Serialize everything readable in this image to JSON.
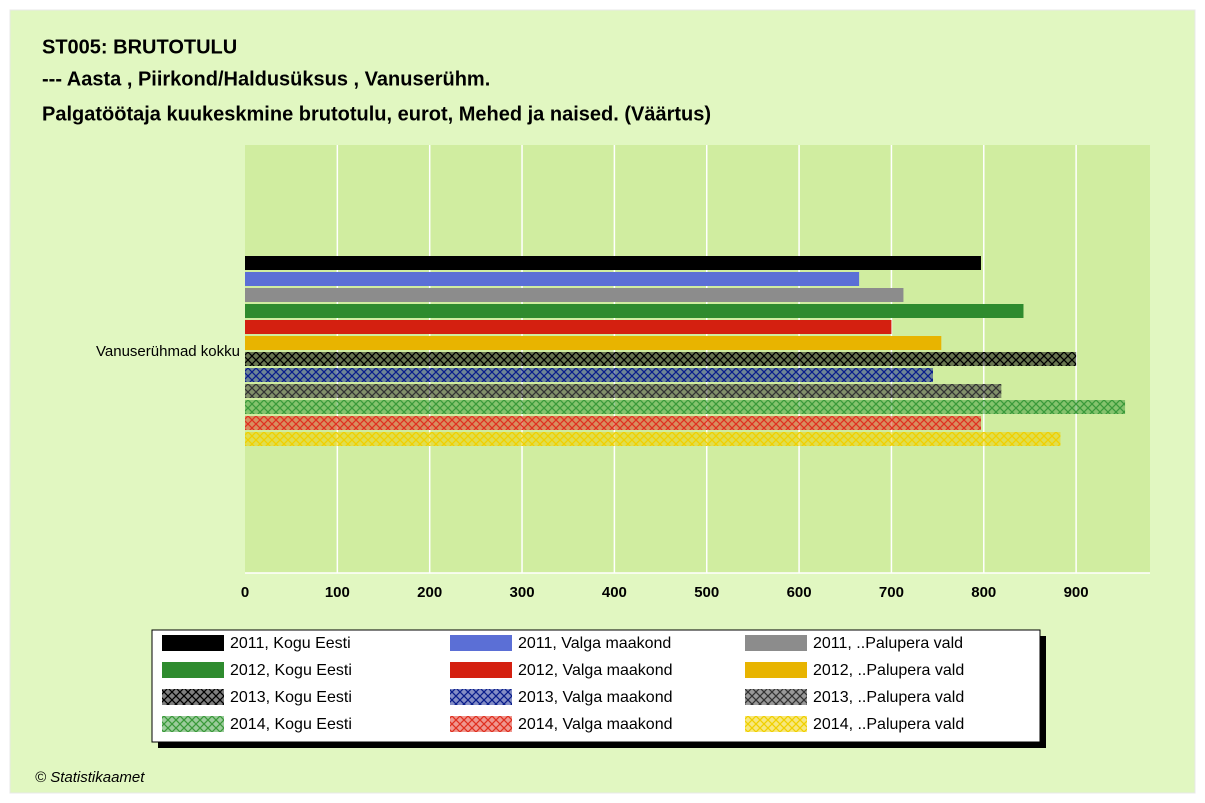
{
  "chart_data": {
    "type": "barh",
    "title": "ST005: BRUTOTULU",
    "subtitle": "--- Aasta , Piirkond/Haldusüksus , Vanuserühm.",
    "subtitle2": "Palgatöötaja kuukeskmine brutotulu, eurot, Mehed ja naised. (Väärtus)",
    "source": "© Statistikaamet",
    "categories": [
      "Vanuserühmad kokku"
    ],
    "xlim": [
      0,
      980
    ],
    "xticks": [
      0,
      100,
      200,
      300,
      400,
      500,
      600,
      700,
      800,
      900
    ],
    "grid": true,
    "legend": "bottom",
    "series": [
      {
        "name": "2011, Kogu Eesti",
        "color": "#000000",
        "hatch": false,
        "values": [
          797
        ]
      },
      {
        "name": "2011, Valga maakond",
        "color": "#5b6fd6",
        "hatch": false,
        "values": [
          665
        ]
      },
      {
        "name": "2011, ..Palupera vald",
        "color": "#8c8c8c",
        "hatch": false,
        "values": [
          713
        ]
      },
      {
        "name": "2012, Kogu Eesti",
        "color": "#2e8b2e",
        "hatch": false,
        "values": [
          843
        ]
      },
      {
        "name": "2012, Valga maakond",
        "color": "#d42010",
        "hatch": false,
        "values": [
          700
        ]
      },
      {
        "name": "2012, ..Palupera vald",
        "color": "#e8b400",
        "hatch": false,
        "values": [
          754
        ]
      },
      {
        "name": "2013, Kogu Eesti",
        "color": "#000000",
        "hatch": true,
        "values": [
          900
        ]
      },
      {
        "name": "2013, Valga maakond",
        "color": "#0a1e8c",
        "hatch": true,
        "values": [
          745
        ]
      },
      {
        "name": "2013, ..Palupera vald",
        "color": "#333333",
        "hatch": true,
        "values": [
          819
        ]
      },
      {
        "name": "2014, Kogu Eesti",
        "color": "#3a9a3a",
        "hatch": true,
        "values": [
          953
        ]
      },
      {
        "name": "2014, Valga maakond",
        "color": "#e03020",
        "hatch": true,
        "values": [
          797
        ]
      },
      {
        "name": "2014, ..Palupera vald",
        "color": "#f0d000",
        "hatch": true,
        "values": [
          883
        ]
      }
    ]
  }
}
